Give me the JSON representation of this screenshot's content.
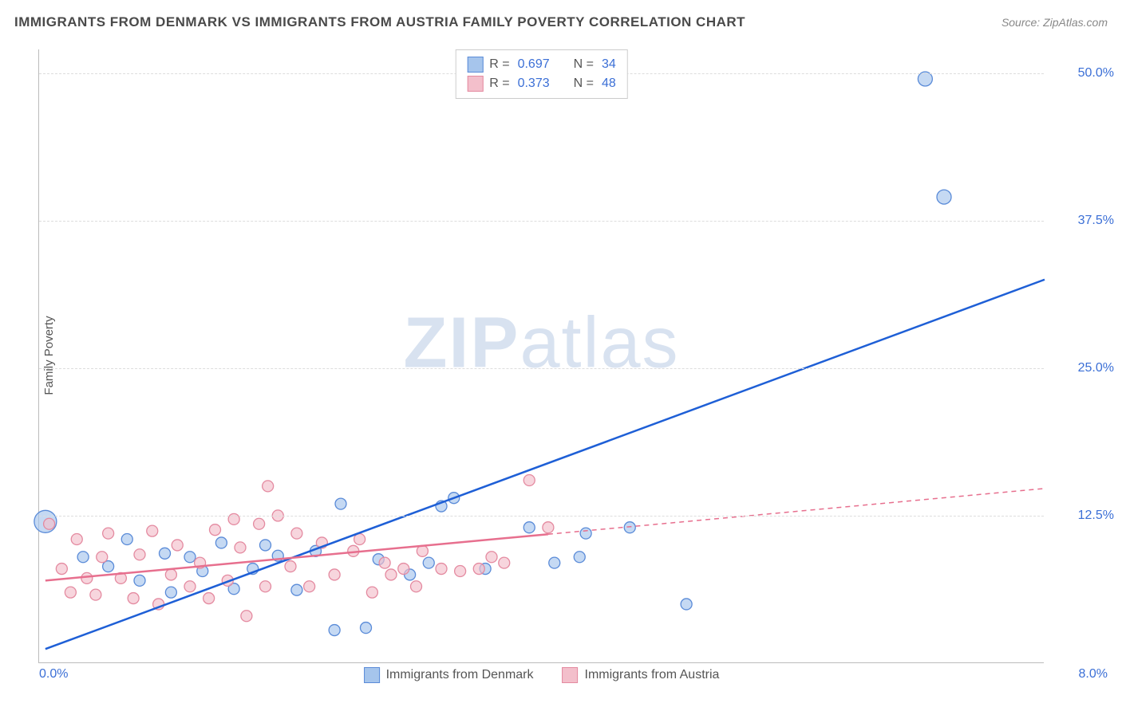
{
  "title": "IMMIGRANTS FROM DENMARK VS IMMIGRANTS FROM AUSTRIA FAMILY POVERTY CORRELATION CHART",
  "source": "Source: ZipAtlas.com",
  "ylabel": "Family Poverty",
  "watermark_bold": "ZIP",
  "watermark_rest": "atlas",
  "chart": {
    "type": "scatter",
    "xlim": [
      0,
      8
    ],
    "ylim": [
      0,
      52
    ],
    "yticks": [
      {
        "v": 12.5,
        "label": "12.5%"
      },
      {
        "v": 25.0,
        "label": "25.0%"
      },
      {
        "v": 37.5,
        "label": "37.5%"
      },
      {
        "v": 50.0,
        "label": "50.0%"
      }
    ],
    "xticks": [
      {
        "v": 0,
        "label": "0.0%"
      },
      {
        "v": 8,
        "label": "8.0%"
      }
    ],
    "background_color": "#ffffff",
    "grid_color": "#dddddd",
    "axis_color": "#bbbbbb",
    "tick_label_color": "#3b6fd6",
    "series": [
      {
        "name": "Immigrants from Denmark",
        "fill": "#a6c5ec",
        "stroke": "#5a8bd8",
        "line_color": "#1e5fd6",
        "line_width": 2.5,
        "line_dash": "none",
        "R": "0.697",
        "N": "34",
        "trend": {
          "x1": 0.05,
          "y1": 1.2,
          "x2": 8.0,
          "y2": 32.5
        },
        "trend_solid_until": 8.0,
        "points": [
          {
            "x": 0.05,
            "y": 12.0,
            "r": 14
          },
          {
            "x": 0.35,
            "y": 9.0,
            "r": 7
          },
          {
            "x": 0.55,
            "y": 8.2,
            "r": 7
          },
          {
            "x": 0.7,
            "y": 10.5,
            "r": 7
          },
          {
            "x": 0.8,
            "y": 7.0,
            "r": 7
          },
          {
            "x": 1.0,
            "y": 9.3,
            "r": 7
          },
          {
            "x": 1.05,
            "y": 6.0,
            "r": 7
          },
          {
            "x": 1.2,
            "y": 9.0,
            "r": 7
          },
          {
            "x": 1.3,
            "y": 7.8,
            "r": 7
          },
          {
            "x": 1.45,
            "y": 10.2,
            "r": 7
          },
          {
            "x": 1.55,
            "y": 6.3,
            "r": 7
          },
          {
            "x": 1.7,
            "y": 8.0,
            "r": 7
          },
          {
            "x": 1.8,
            "y": 10.0,
            "r": 7
          },
          {
            "x": 1.9,
            "y": 9.1,
            "r": 7
          },
          {
            "x": 2.05,
            "y": 6.2,
            "r": 7
          },
          {
            "x": 2.2,
            "y": 9.5,
            "r": 7
          },
          {
            "x": 2.35,
            "y": 2.8,
            "r": 7
          },
          {
            "x": 2.4,
            "y": 13.5,
            "r": 7
          },
          {
            "x": 2.6,
            "y": 3.0,
            "r": 7
          },
          {
            "x": 2.7,
            "y": 8.8,
            "r": 7
          },
          {
            "x": 2.95,
            "y": 7.5,
            "r": 7
          },
          {
            "x": 3.1,
            "y": 8.5,
            "r": 7
          },
          {
            "x": 3.2,
            "y": 13.3,
            "r": 7
          },
          {
            "x": 3.3,
            "y": 14.0,
            "r": 7
          },
          {
            "x": 3.55,
            "y": 8.0,
            "r": 7
          },
          {
            "x": 3.9,
            "y": 11.5,
            "r": 7
          },
          {
            "x": 4.1,
            "y": 8.5,
            "r": 7
          },
          {
            "x": 4.3,
            "y": 9.0,
            "r": 7
          },
          {
            "x": 4.35,
            "y": 11.0,
            "r": 7
          },
          {
            "x": 4.7,
            "y": 11.5,
            "r": 7
          },
          {
            "x": 5.15,
            "y": 5.0,
            "r": 7
          },
          {
            "x": 7.05,
            "y": 49.5,
            "r": 9
          },
          {
            "x": 7.2,
            "y": 39.5,
            "r": 9
          }
        ]
      },
      {
        "name": "Immigrants from Austria",
        "fill": "#f3bfcb",
        "stroke": "#e48aa0",
        "line_color": "#e76f8e",
        "line_width": 2.5,
        "line_dash": "6,5",
        "R": "0.373",
        "N": "48",
        "trend": {
          "x1": 0.05,
          "y1": 7.0,
          "x2": 8.0,
          "y2": 14.8
        },
        "trend_solid_until": 4.05,
        "points": [
          {
            "x": 0.08,
            "y": 11.8,
            "r": 7
          },
          {
            "x": 0.18,
            "y": 8.0,
            "r": 7
          },
          {
            "x": 0.25,
            "y": 6.0,
            "r": 7
          },
          {
            "x": 0.3,
            "y": 10.5,
            "r": 7
          },
          {
            "x": 0.38,
            "y": 7.2,
            "r": 7
          },
          {
            "x": 0.45,
            "y": 5.8,
            "r": 7
          },
          {
            "x": 0.5,
            "y": 9.0,
            "r": 7
          },
          {
            "x": 0.55,
            "y": 11.0,
            "r": 7
          },
          {
            "x": 0.65,
            "y": 7.2,
            "r": 7
          },
          {
            "x": 0.75,
            "y": 5.5,
            "r": 7
          },
          {
            "x": 0.8,
            "y": 9.2,
            "r": 7
          },
          {
            "x": 0.9,
            "y": 11.2,
            "r": 7
          },
          {
            "x": 0.95,
            "y": 5.0,
            "r": 7
          },
          {
            "x": 1.05,
            "y": 7.5,
            "r": 7
          },
          {
            "x": 1.1,
            "y": 10.0,
            "r": 7
          },
          {
            "x": 1.2,
            "y": 6.5,
            "r": 7
          },
          {
            "x": 1.28,
            "y": 8.5,
            "r": 7
          },
          {
            "x": 1.35,
            "y": 5.5,
            "r": 7
          },
          {
            "x": 1.4,
            "y": 11.3,
            "r": 7
          },
          {
            "x": 1.5,
            "y": 7.0,
            "r": 7
          },
          {
            "x": 1.55,
            "y": 12.2,
            "r": 7
          },
          {
            "x": 1.6,
            "y": 9.8,
            "r": 7
          },
          {
            "x": 1.65,
            "y": 4.0,
            "r": 7
          },
          {
            "x": 1.75,
            "y": 11.8,
            "r": 7
          },
          {
            "x": 1.8,
            "y": 6.5,
            "r": 7
          },
          {
            "x": 1.82,
            "y": 15.0,
            "r": 7
          },
          {
            "x": 1.9,
            "y": 12.5,
            "r": 7
          },
          {
            "x": 2.0,
            "y": 8.2,
            "r": 7
          },
          {
            "x": 2.05,
            "y": 11.0,
            "r": 7
          },
          {
            "x": 2.15,
            "y": 6.5,
            "r": 7
          },
          {
            "x": 2.25,
            "y": 10.2,
            "r": 7
          },
          {
            "x": 2.35,
            "y": 7.5,
            "r": 7
          },
          {
            "x": 2.5,
            "y": 9.5,
            "r": 7
          },
          {
            "x": 2.55,
            "y": 10.5,
            "r": 7
          },
          {
            "x": 2.65,
            "y": 6.0,
            "r": 7
          },
          {
            "x": 2.75,
            "y": 8.5,
            "r": 7
          },
          {
            "x": 2.8,
            "y": 7.5,
            "r": 7
          },
          {
            "x": 2.9,
            "y": 8.0,
            "r": 7
          },
          {
            "x": 3.0,
            "y": 6.5,
            "r": 7
          },
          {
            "x": 3.05,
            "y": 9.5,
            "r": 7
          },
          {
            "x": 3.2,
            "y": 8.0,
            "r": 7
          },
          {
            "x": 3.35,
            "y": 7.8,
            "r": 7
          },
          {
            "x": 3.5,
            "y": 8.0,
            "r": 7
          },
          {
            "x": 3.6,
            "y": 9.0,
            "r": 7
          },
          {
            "x": 3.7,
            "y": 8.5,
            "r": 7
          },
          {
            "x": 3.9,
            "y": 15.5,
            "r": 7
          },
          {
            "x": 4.05,
            "y": 11.5,
            "r": 7
          }
        ]
      }
    ],
    "legend_top": {
      "r_label": "R =",
      "n_label": "N ="
    },
    "legend_bottom": [
      {
        "series": 0
      },
      {
        "series": 1
      }
    ]
  }
}
